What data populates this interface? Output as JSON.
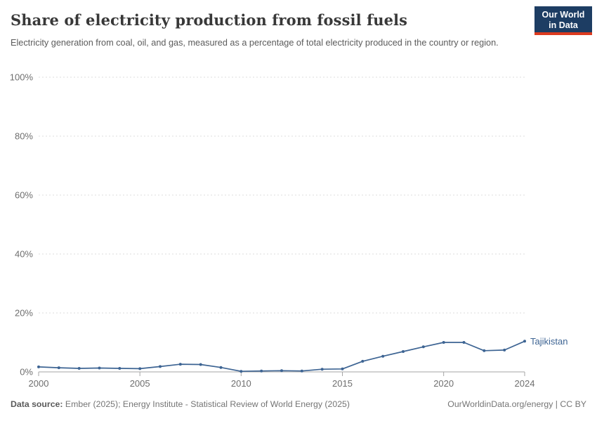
{
  "header": {
    "title": "Share of electricity production from fossil fuels",
    "subtitle": "Electricity generation from coal, oil, and gas, measured as a percentage of total electricity produced in the country or region.",
    "logo": {
      "line1": "Our World",
      "line2": "in Data"
    }
  },
  "chart_data": {
    "type": "line",
    "title": "Share of electricity production from fossil fuels",
    "xlabel": "",
    "ylabel": "",
    "xlim": [
      2000,
      2024
    ],
    "ylim": [
      0,
      100
    ],
    "grid": "horizontal-dashed",
    "legend_position": "end-of-line-label",
    "x_ticks": [
      {
        "v": 2000,
        "label": "2000"
      },
      {
        "v": 2005,
        "label": "2005"
      },
      {
        "v": 2010,
        "label": "2010"
      },
      {
        "v": 2015,
        "label": "2015"
      },
      {
        "v": 2020,
        "label": "2020"
      },
      {
        "v": 2024,
        "label": "2024"
      }
    ],
    "y_ticks": [
      {
        "v": 0,
        "label": "0%"
      },
      {
        "v": 20,
        "label": "20%"
      },
      {
        "v": 40,
        "label": "40%"
      },
      {
        "v": 60,
        "label": "60%"
      },
      {
        "v": 80,
        "label": "80%"
      },
      {
        "v": 100,
        "label": "100%"
      }
    ],
    "series": [
      {
        "name": "Tajikistan",
        "color": "#3d6493",
        "x": [
          2000,
          2001,
          2002,
          2003,
          2004,
          2005,
          2006,
          2007,
          2008,
          2009,
          2010,
          2011,
          2012,
          2013,
          2014,
          2015,
          2016,
          2017,
          2018,
          2019,
          2020,
          2021,
          2022,
          2023,
          2024
        ],
        "values": [
          1.7,
          1.4,
          1.2,
          1.3,
          1.2,
          1.1,
          1.8,
          2.6,
          2.5,
          1.5,
          0.2,
          0.3,
          0.4,
          0.3,
          0.9,
          1.0,
          3.6,
          5.3,
          6.9,
          8.5,
          10.0,
          10.0,
          7.2,
          7.4,
          10.4
        ]
      }
    ]
  },
  "footer": {
    "source_label": "Data source:",
    "source_text": " Ember (2025); Energy Institute - Statistical Review of World Energy (2025)",
    "credit": "OurWorldinData.org/energy | CC BY"
  },
  "colors": {
    "accent_line": "#3d6493",
    "logo_bg": "#1d3d63",
    "logo_red": "#dc3a1f",
    "gridline": "#dcdcdc",
    "axis": "#a5a5a5",
    "tick_text": "#6e6e6e"
  }
}
